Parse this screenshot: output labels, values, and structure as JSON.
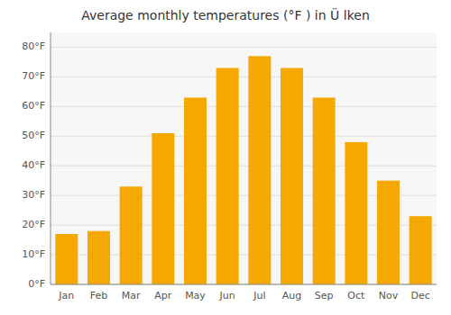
{
  "chart_data": {
    "type": "bar",
    "title": "Average monthly temperatures (°F ) in Ü lken",
    "categories": [
      "Jan",
      "Feb",
      "Mar",
      "Apr",
      "May",
      "Jun",
      "Jul",
      "Aug",
      "Sep",
      "Oct",
      "Nov",
      "Dec"
    ],
    "values": [
      17,
      18,
      33,
      51,
      63,
      73,
      77,
      73,
      63,
      48,
      35,
      23
    ],
    "color": "#F5A800",
    "ylim": [
      0,
      85
    ],
    "yticks": [
      {
        "value": 0,
        "label": "0°F"
      },
      {
        "value": 10,
        "label": "10°F"
      },
      {
        "value": 20,
        "label": "20°F"
      },
      {
        "value": 30,
        "label": "30°F"
      },
      {
        "value": 40,
        "label": "40°F"
      },
      {
        "value": 50,
        "label": "50°F"
      },
      {
        "value": 60,
        "label": "60°F"
      },
      {
        "value": 70,
        "label": "70°F"
      },
      {
        "value": 80,
        "label": "80°F"
      }
    ],
    "grid": true
  }
}
